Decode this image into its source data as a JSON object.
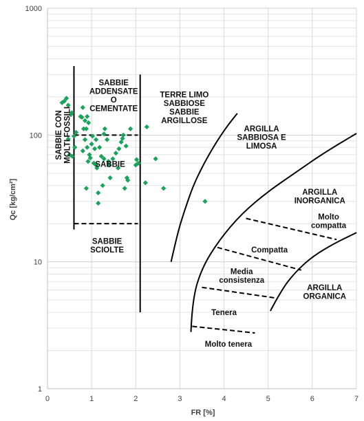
{
  "chart_data": {
    "type": "scatter",
    "xlabel": "FR [%]",
    "ylabel": "Qc [kg/cm²]",
    "xlim": [
      0,
      7
    ],
    "ylim": [
      1,
      1000
    ],
    "y_scale": "log",
    "grid": true,
    "x_ticks": [
      "0",
      "1",
      "2",
      "3",
      "4",
      "5",
      "6",
      "7"
    ],
    "y_ticks": [
      {
        "value": 1,
        "label": "1"
      },
      {
        "value": 10,
        "label": "10"
      },
      {
        "value": 100,
        "label": "100"
      },
      {
        "value": 1000,
        "label": "1000"
      }
    ],
    "series": [
      {
        "color": "#1aa35a",
        "marker": "diamond",
        "points": [
          [
            0.33,
            180
          ],
          [
            0.38,
            185
          ],
          [
            0.43,
            195
          ],
          [
            0.47,
            172
          ],
          [
            0.53,
            145
          ],
          [
            0.55,
            150
          ],
          [
            0.47,
            93
          ],
          [
            0.5,
            70
          ],
          [
            0.56,
            68
          ],
          [
            0.6,
            98
          ],
          [
            0.62,
            80
          ],
          [
            0.65,
            105
          ],
          [
            0.75,
            140
          ],
          [
            0.78,
            138
          ],
          [
            0.8,
            165
          ],
          [
            0.82,
            112
          ],
          [
            0.85,
            130
          ],
          [
            0.88,
            112
          ],
          [
            0.9,
            140
          ],
          [
            0.93,
            125
          ],
          [
            0.8,
            75
          ],
          [
            0.85,
            92
          ],
          [
            0.9,
            80
          ],
          [
            0.95,
            70
          ],
          [
            0.92,
            62
          ],
          [
            0.97,
            66
          ],
          [
            1.0,
            85
          ],
          [
            1.02,
            98
          ],
          [
            1.07,
            78
          ],
          [
            1.1,
            92
          ],
          [
            1.05,
            60
          ],
          [
            1.1,
            58
          ],
          [
            1.12,
            55
          ],
          [
            1.18,
            80
          ],
          [
            1.22,
            68
          ],
          [
            1.28,
            102
          ],
          [
            1.3,
            112
          ],
          [
            1.35,
            92
          ],
          [
            1.38,
            62
          ],
          [
            1.4,
            58
          ],
          [
            1.42,
            46
          ],
          [
            1.48,
            65
          ],
          [
            1.55,
            72
          ],
          [
            1.6,
            55
          ],
          [
            1.62,
            78
          ],
          [
            1.67,
            88
          ],
          [
            1.7,
            94
          ],
          [
            1.72,
            100
          ],
          [
            1.78,
            82
          ],
          [
            1.8,
            46
          ],
          [
            1.82,
            44
          ],
          [
            1.88,
            112
          ],
          [
            2.0,
            58
          ],
          [
            2.02,
            64
          ],
          [
            2.06,
            60
          ],
          [
            0.88,
            38
          ],
          [
            1.15,
            35
          ],
          [
            1.15,
            29
          ],
          [
            1.25,
            40
          ],
          [
            1.75,
            38
          ],
          [
            2.22,
            42
          ],
          [
            2.45,
            65
          ],
          [
            2.63,
            38
          ],
          [
            2.25,
            116
          ],
          [
            1.28,
            65
          ],
          [
            3.57,
            30
          ]
        ]
      }
    ],
    "boundaries": [
      {
        "kind": "vertical",
        "style": "solid",
        "x": 0.6,
        "y_range": [
          18,
          350
        ]
      },
      {
        "kind": "vertical",
        "style": "solid",
        "x": 2.1,
        "y_range": [
          4,
          300
        ]
      },
      {
        "kind": "horizontal",
        "style": "dashed",
        "y": 20,
        "x_range": [
          0.6,
          2.05
        ]
      },
      {
        "kind": "horizontal",
        "style": "dashed",
        "y": 100,
        "x_range": [
          0.6,
          2.05
        ]
      },
      {
        "kind": "curve",
        "style": "solid",
        "points": [
          [
            2.8,
            10
          ],
          [
            2.95,
            17
          ],
          [
            3.1,
            25
          ],
          [
            3.3,
            40
          ],
          [
            3.55,
            60
          ],
          [
            3.8,
            85
          ],
          [
            4.05,
            115
          ],
          [
            4.3,
            148
          ]
        ]
      },
      {
        "kind": "curve",
        "style": "solid",
        "points": [
          [
            3.25,
            2.8
          ],
          [
            3.28,
            5
          ],
          [
            3.5,
            9
          ],
          [
            3.9,
            15
          ],
          [
            4.4,
            24
          ],
          [
            5.0,
            36
          ],
          [
            5.6,
            50
          ],
          [
            6.2,
            70
          ],
          [
            7.0,
            103
          ]
        ]
      },
      {
        "kind": "curve",
        "style": "solid",
        "points": [
          [
            5.05,
            4.1
          ],
          [
            5.3,
            6
          ],
          [
            5.6,
            8.2
          ],
          [
            6.0,
            11
          ],
          [
            6.5,
            14
          ],
          [
            7.0,
            17
          ]
        ]
      },
      {
        "kind": "segment",
        "style": "dashed",
        "points": [
          [
            4.5,
            22
          ],
          [
            6.55,
            15
          ]
        ]
      },
      {
        "kind": "segment",
        "style": "dashed",
        "points": [
          [
            3.85,
            13
          ],
          [
            5.75,
            8.6
          ]
        ]
      },
      {
        "kind": "segment",
        "style": "dashed",
        "points": [
          [
            3.5,
            6.3
          ],
          [
            5.15,
            5.2
          ]
        ]
      },
      {
        "kind": "segment",
        "style": "dashed",
        "points": [
          [
            3.28,
            3.1
          ],
          [
            4.7,
            2.75
          ]
        ]
      }
    ],
    "zone_labels": [
      {
        "lines": [
          "SABBIE",
          "ADDENSATE",
          "O",
          "CEMENTATE"
        ],
        "x": 1.5,
        "y": 205,
        "style": "bold"
      },
      {
        "lines": [
          "SABBIE CON",
          "MOLTI FOSSILI"
        ],
        "x": 0.35,
        "y": 100,
        "rotation": -90,
        "style": "bold"
      },
      {
        "lines": [
          "SABBIE"
        ],
        "x": 1.42,
        "y": 59,
        "style": "bold"
      },
      {
        "lines": [
          "SABBIE",
          "SCIOLTE"
        ],
        "x": 1.35,
        "y": 13.5,
        "style": "bold"
      },
      {
        "lines": [
          "TERRE LIMO",
          "SABBIOSE",
          "SABBIE",
          "ARGILLOSE"
        ],
        "x": 3.1,
        "y": 165,
        "style": "bold"
      },
      {
        "lines": [
          "ARGILLA",
          "SABBIOSA E",
          "LIMOSA"
        ],
        "x": 4.85,
        "y": 96,
        "style": "bold"
      },
      {
        "lines": [
          "ARGILLA",
          "INORGANICA"
        ],
        "x": 6.17,
        "y": 33,
        "style": "bold"
      },
      {
        "lines": [
          "Molto",
          "compatta"
        ],
        "x": 6.37,
        "y": 21,
        "style": "bold"
      },
      {
        "lines": [
          "Compatta"
        ],
        "x": 5.03,
        "y": 12.5,
        "style": "bold"
      },
      {
        "lines": [
          "Media",
          "consistenza"
        ],
        "x": 4.4,
        "y": 7.8,
        "style": "bold"
      },
      {
        "lines": [
          "ARGILLA",
          "ORGANICA"
        ],
        "x": 6.28,
        "y": 5.8,
        "style": "bold"
      },
      {
        "lines": [
          "Tenera"
        ],
        "x": 4.0,
        "y": 4.0,
        "style": "bold"
      },
      {
        "lines": [
          "Molto tenera"
        ],
        "x": 4.1,
        "y": 2.25,
        "style": "bold"
      }
    ]
  }
}
